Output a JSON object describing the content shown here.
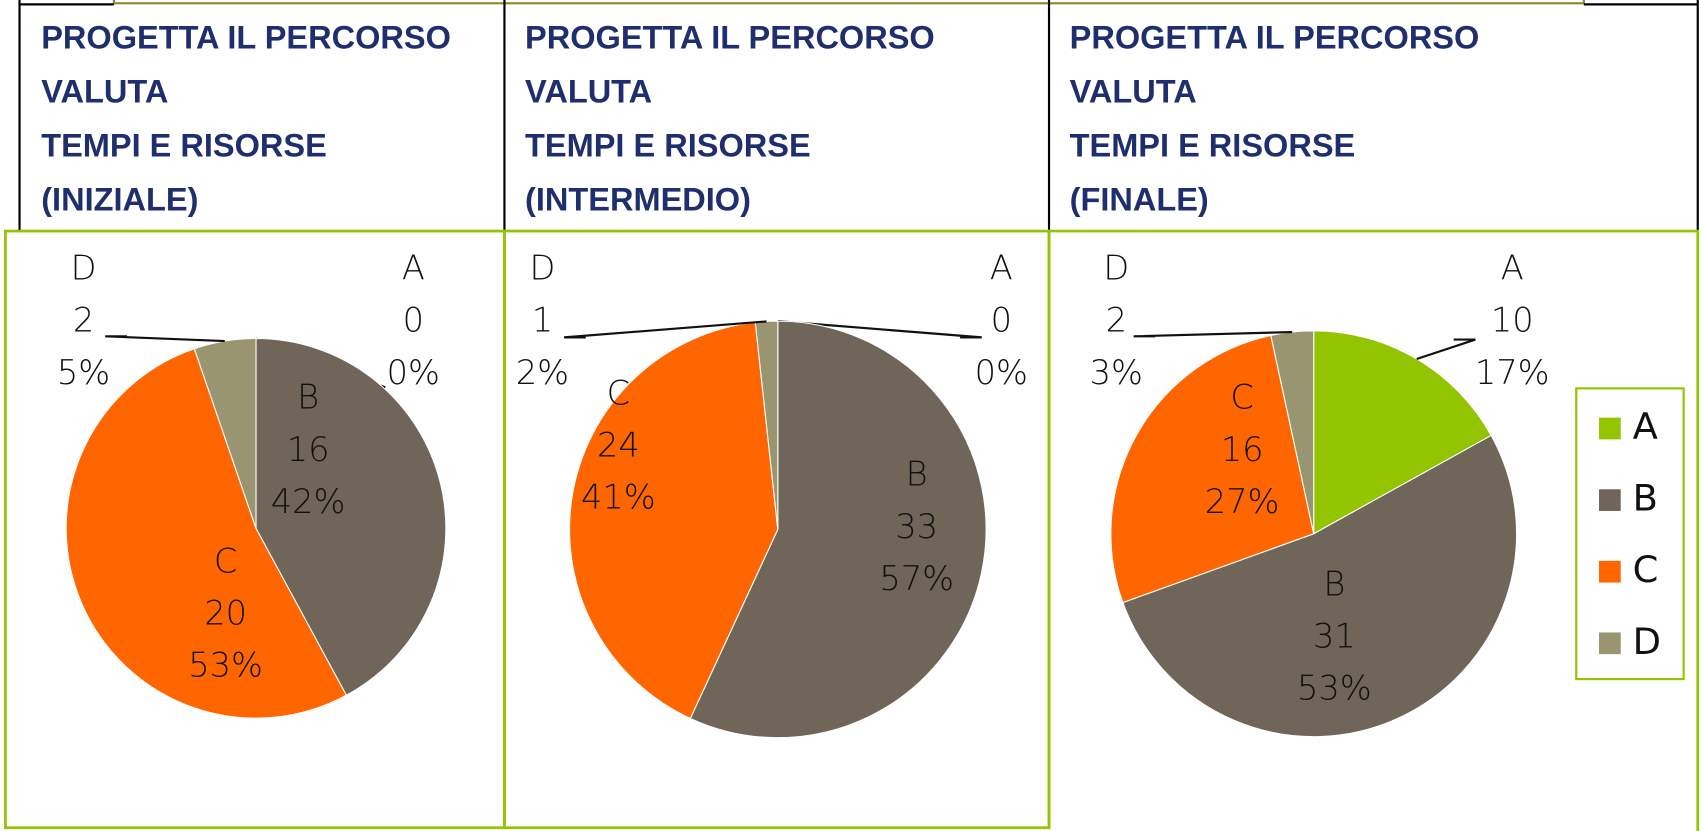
{
  "chart_data": [
    {
      "type": "pie",
      "title": [
        "PROGETTA IL PERCORSO",
        "VALUTA",
        "TEMPI E RISORSE",
        " (INIZIALE)"
      ],
      "categories": [
        "A",
        "B",
        "C",
        "D"
      ],
      "values": [
        0,
        16,
        20,
        2
      ],
      "percent_labels": [
        "0%",
        "42%",
        "53%",
        "5%"
      ],
      "colors": [
        "#92c400",
        "#6f6558",
        "#ff6600",
        "#999570"
      ]
    },
    {
      "type": "pie",
      "title": [
        "PROGETTA IL PERCORSO",
        " VALUTA",
        "TEMPI E RISORSE",
        "(INTERMEDIO)"
      ],
      "categories": [
        "A",
        "B",
        "C",
        "D"
      ],
      "values": [
        0,
        33,
        24,
        1
      ],
      "percent_labels": [
        "0%",
        "57%",
        "41%",
        "2%"
      ],
      "colors": [
        "#92c400",
        "#6f6558",
        "#ff6600",
        "#999570"
      ]
    },
    {
      "type": "pie",
      "title": [
        "PROGETTA IL PERCORSO",
        " VALUTA",
        "TEMPI E RISORSE",
        "(FINALE)"
      ],
      "categories": [
        "A",
        "B",
        "C",
        "D"
      ],
      "values": [
        10,
        31,
        16,
        2
      ],
      "percent_labels": [
        "17%",
        "53%",
        "27%",
        "3%"
      ],
      "colors": [
        "#92c400",
        "#6f6558",
        "#ff6600",
        "#999570"
      ],
      "legend": "right"
    }
  ]
}
